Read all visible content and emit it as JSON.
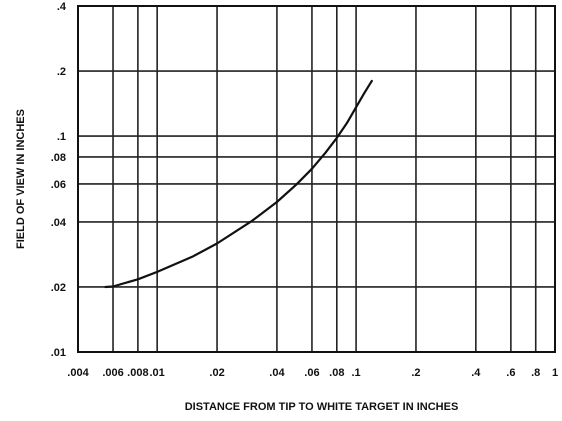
{
  "chart_data": {
    "type": "line",
    "title": "",
    "xlabel": "DISTANCE FROM TIP TO WHITE TARGET IN INCHES",
    "ylabel": "FIELD OF VIEW IN INCHES",
    "x_scale": "log",
    "y_scale": "log",
    "xlim": [
      0.004,
      1
    ],
    "ylim": [
      0.01,
      0.4
    ],
    "grid": true,
    "x_ticks": [
      {
        "value": 0.004,
        "label": ".004"
      },
      {
        "value": 0.006,
        "label": ".006"
      },
      {
        "value": 0.008,
        "label": ".008"
      },
      {
        "value": 0.01,
        "label": ".01"
      },
      {
        "value": 0.02,
        "label": ".02"
      },
      {
        "value": 0.04,
        "label": ".04"
      },
      {
        "value": 0.06,
        "label": ".06"
      },
      {
        "value": 0.08,
        "label": ".08"
      },
      {
        "value": 0.1,
        "label": ".1"
      },
      {
        "value": 0.2,
        "label": ".2"
      },
      {
        "value": 0.4,
        "label": ".4"
      },
      {
        "value": 0.6,
        "label": ".6"
      },
      {
        "value": 0.8,
        "label": ".8"
      },
      {
        "value": 1,
        "label": "1"
      }
    ],
    "y_ticks": [
      {
        "value": 0.01,
        "label": ".01"
      },
      {
        "value": 0.02,
        "label": ".02"
      },
      {
        "value": 0.04,
        "label": ".04"
      },
      {
        "value": 0.06,
        "label": ".06"
      },
      {
        "value": 0.08,
        "label": ".08"
      },
      {
        "value": 0.1,
        "label": ".1"
      },
      {
        "value": 0.2,
        "label": ".2"
      },
      {
        "value": 0.4,
        "label": ".4"
      }
    ],
    "series": [
      {
        "color": "#111111",
        "x": [
          0.0055,
          0.006,
          0.008,
          0.01,
          0.015,
          0.02,
          0.03,
          0.04,
          0.05,
          0.06,
          0.07,
          0.08,
          0.09,
          0.1,
          0.11,
          0.12
        ],
        "y": [
          0.02,
          0.0201,
          0.0217,
          0.0235,
          0.0276,
          0.0318,
          0.0405,
          0.0495,
          0.0595,
          0.0705,
          0.0835,
          0.098,
          0.115,
          0.136,
          0.158,
          0.18
        ]
      }
    ]
  }
}
